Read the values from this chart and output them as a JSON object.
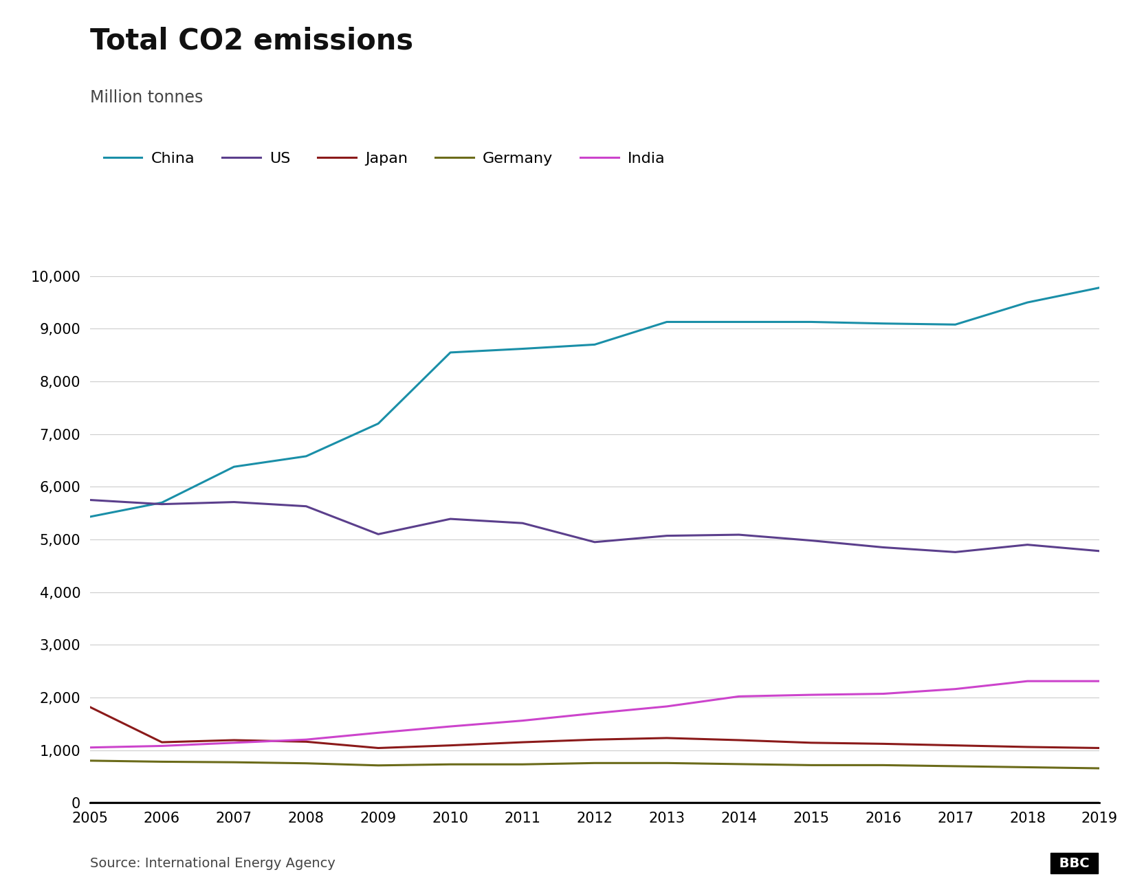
{
  "title": "Total CO2 emissions",
  "subtitle": "Million tonnes",
  "source": "Source: International Energy Agency",
  "years": [
    2005,
    2006,
    2007,
    2008,
    2009,
    2010,
    2011,
    2012,
    2013,
    2014,
    2015,
    2016,
    2017,
    2018,
    2019
  ],
  "series": {
    "China": {
      "color": "#1a8fa8",
      "values": [
        5430,
        5700,
        6380,
        6580,
        7200,
        8550,
        8620,
        8700,
        9130,
        9130,
        9130,
        9100,
        9080,
        9500,
        9780
      ]
    },
    "US": {
      "color": "#5b3f8c",
      "values": [
        5750,
        5670,
        5710,
        5630,
        5100,
        5390,
        5310,
        4950,
        5070,
        5090,
        4980,
        4850,
        4760,
        4900,
        4780
      ]
    },
    "Japan": {
      "color": "#8b1a1a",
      "values": [
        1820,
        1150,
        1190,
        1160,
        1040,
        1090,
        1150,
        1200,
        1230,
        1190,
        1140,
        1120,
        1090,
        1060,
        1040
      ]
    },
    "Germany": {
      "color": "#6b6b1a",
      "values": [
        800,
        780,
        770,
        750,
        710,
        730,
        730,
        755,
        755,
        735,
        715,
        715,
        695,
        675,
        655
      ]
    },
    "India": {
      "color": "#cc44cc",
      "values": [
        1050,
        1080,
        1140,
        1200,
        1330,
        1450,
        1560,
        1700,
        1830,
        2020,
        2050,
        2070,
        2160,
        2310,
        2310
      ]
    }
  },
  "ylim": [
    0,
    10500
  ],
  "yticks": [
    0,
    1000,
    2000,
    3000,
    4000,
    5000,
    6000,
    7000,
    8000,
    9000,
    10000
  ],
  "figsize": [
    16.32,
    12.98
  ],
  "dpi": 100,
  "background_color": "#ffffff",
  "title_fontsize": 30,
  "subtitle_fontsize": 17,
  "axis_fontsize": 15,
  "legend_fontsize": 16,
  "source_fontsize": 14,
  "line_width": 2.2
}
